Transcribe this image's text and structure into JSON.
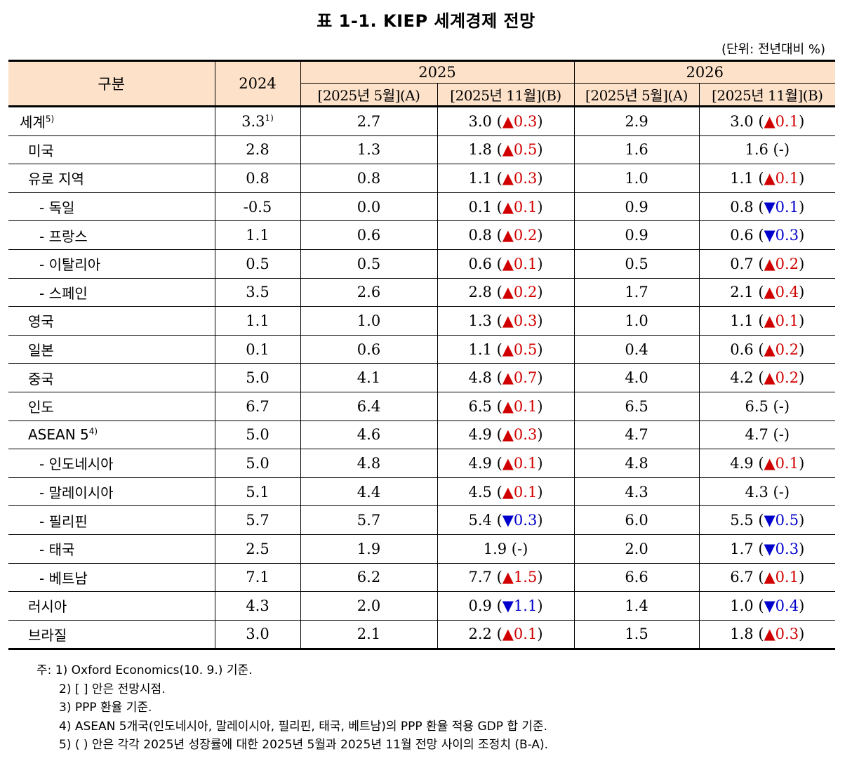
{
  "title": "표 1-1. KIEP 세계경제 전망",
  "unit": "(단위: 전년대비 %)",
  "header": {
    "category": "구분",
    "y2024": "2024",
    "y2025": "2025",
    "y2026": "2026",
    "sub_a_2025": "[2025년 5월](A)",
    "sub_b_2025": "[2025년 11월](B)",
    "sub_a_2026": "[2025년 5월](A)",
    "sub_b_2026": "[2025년 11월](B)"
  },
  "colors": {
    "up": "#d10000",
    "down": "#0000cc",
    "header_bg": "#fde1c9"
  },
  "rows": [
    {
      "label": "세계",
      "sup": "5)",
      "level": 0,
      "v2024": "3.3",
      "v2024_sup": "1)",
      "a2025": "2.7",
      "b2025": "3.0",
      "c2025": "▲0.3",
      "d2025": "up",
      "a2026": "2.9",
      "b2026": "3.0",
      "c2026": "▲0.1",
      "d2026": "up"
    },
    {
      "label": "미국",
      "sup": "",
      "level": 1,
      "v2024": "2.8",
      "v2024_sup": "",
      "a2025": "1.3",
      "b2025": "1.8",
      "c2025": "▲0.5",
      "d2025": "up",
      "a2026": "1.6",
      "b2026": "1.6",
      "c2026": "-",
      "d2026": "none"
    },
    {
      "label": "유로 지역",
      "sup": "",
      "level": 1,
      "v2024": "0.8",
      "v2024_sup": "",
      "a2025": "0.8",
      "b2025": "1.1",
      "c2025": "▲0.3",
      "d2025": "up",
      "a2026": "1.0",
      "b2026": "1.1",
      "c2026": "▲0.1",
      "d2026": "up"
    },
    {
      "label": "- 독일",
      "sup": "",
      "level": 2,
      "v2024": "-0.5",
      "v2024_sup": "",
      "a2025": "0.0",
      "b2025": "0.1",
      "c2025": "▲0.1",
      "d2025": "up",
      "a2026": "0.9",
      "b2026": "0.8",
      "c2026": "▼0.1",
      "d2026": "down"
    },
    {
      "label": "- 프랑스",
      "sup": "",
      "level": 2,
      "v2024": "1.1",
      "v2024_sup": "",
      "a2025": "0.6",
      "b2025": "0.8",
      "c2025": "▲0.2",
      "d2025": "up",
      "a2026": "0.9",
      "b2026": "0.6",
      "c2026": "▼0.3",
      "d2026": "down"
    },
    {
      "label": "- 이탈리아",
      "sup": "",
      "level": 2,
      "v2024": "0.5",
      "v2024_sup": "",
      "a2025": "0.5",
      "b2025": "0.6",
      "c2025": "▲0.1",
      "d2025": "up",
      "a2026": "0.5",
      "b2026": "0.7",
      "c2026": "▲0.2",
      "d2026": "up"
    },
    {
      "label": "- 스페인",
      "sup": "",
      "level": 2,
      "v2024": "3.5",
      "v2024_sup": "",
      "a2025": "2.6",
      "b2025": "2.8",
      "c2025": "▲0.2",
      "d2025": "up",
      "a2026": "1.7",
      "b2026": "2.1",
      "c2026": "▲0.4",
      "d2026": "up"
    },
    {
      "label": "영국",
      "sup": "",
      "level": 1,
      "v2024": "1.1",
      "v2024_sup": "",
      "a2025": "1.0",
      "b2025": "1.3",
      "c2025": "▲0.3",
      "d2025": "up",
      "a2026": "1.0",
      "b2026": "1.1",
      "c2026": "▲0.1",
      "d2026": "up"
    },
    {
      "label": "일본",
      "sup": "",
      "level": 1,
      "v2024": "0.1",
      "v2024_sup": "",
      "a2025": "0.6",
      "b2025": "1.1",
      "c2025": "▲0.5",
      "d2025": "up",
      "a2026": "0.4",
      "b2026": "0.6",
      "c2026": "▲0.2",
      "d2026": "up"
    },
    {
      "label": "중국",
      "sup": "",
      "level": 1,
      "v2024": "5.0",
      "v2024_sup": "",
      "a2025": "4.1",
      "b2025": "4.8",
      "c2025": "▲0.7",
      "d2025": "up",
      "a2026": "4.0",
      "b2026": "4.2",
      "c2026": "▲0.2",
      "d2026": "up"
    },
    {
      "label": "인도",
      "sup": "",
      "level": 1,
      "v2024": "6.7",
      "v2024_sup": "",
      "a2025": "6.4",
      "b2025": "6.5",
      "c2025": "▲0.1",
      "d2025": "up",
      "a2026": "6.5",
      "b2026": "6.5",
      "c2026": "-",
      "d2026": "none"
    },
    {
      "label": "ASEAN 5",
      "sup": "4)",
      "level": 1,
      "v2024": "5.0",
      "v2024_sup": "",
      "a2025": "4.6",
      "b2025": "4.9",
      "c2025": "▲0.3",
      "d2025": "up",
      "a2026": "4.7",
      "b2026": "4.7",
      "c2026": "-",
      "d2026": "none"
    },
    {
      "label": "- 인도네시아",
      "sup": "",
      "level": 2,
      "v2024": "5.0",
      "v2024_sup": "",
      "a2025": "4.8",
      "b2025": "4.9",
      "c2025": "▲0.1",
      "d2025": "up",
      "a2026": "4.8",
      "b2026": "4.9",
      "c2026": "▲0.1",
      "d2026": "up"
    },
    {
      "label": "- 말레이시아",
      "sup": "",
      "level": 2,
      "v2024": "5.1",
      "v2024_sup": "",
      "a2025": "4.4",
      "b2025": "4.5",
      "c2025": "▲0.1",
      "d2025": "up",
      "a2026": "4.3",
      "b2026": "4.3",
      "c2026": "-",
      "d2026": "none"
    },
    {
      "label": "- 필리핀",
      "sup": "",
      "level": 2,
      "v2024": "5.7",
      "v2024_sup": "",
      "a2025": "5.7",
      "b2025": "5.4",
      "c2025": "▼0.3",
      "d2025": "down",
      "a2026": "6.0",
      "b2026": "5.5",
      "c2026": "▼0.5",
      "d2026": "down"
    },
    {
      "label": "- 태국",
      "sup": "",
      "level": 2,
      "v2024": "2.5",
      "v2024_sup": "",
      "a2025": "1.9",
      "b2025": "1.9",
      "c2025": "-",
      "d2025": "none",
      "a2026": "2.0",
      "b2026": "1.7",
      "c2026": "▼0.3",
      "d2026": "down"
    },
    {
      "label": "- 베트남",
      "sup": "",
      "level": 2,
      "v2024": "7.1",
      "v2024_sup": "",
      "a2025": "6.2",
      "b2025": "7.7",
      "c2025": "▲1.5",
      "d2025": "up",
      "a2026": "6.6",
      "b2026": "6.7",
      "c2026": "▲0.1",
      "d2026": "up"
    },
    {
      "label": "러시아",
      "sup": "",
      "level": 1,
      "v2024": "4.3",
      "v2024_sup": "",
      "a2025": "2.0",
      "b2025": "0.9",
      "c2025": "▼1.1",
      "d2025": "down",
      "a2026": "1.4",
      "b2026": "1.0",
      "c2026": "▼0.4",
      "d2026": "down"
    },
    {
      "label": "브라질",
      "sup": "",
      "level": 1,
      "v2024": "3.0",
      "v2024_sup": "",
      "a2025": "2.1",
      "b2025": "2.2",
      "c2025": "▲0.1",
      "d2025": "up",
      "a2026": "1.5",
      "b2026": "1.8",
      "c2026": "▲0.3",
      "d2026": "up"
    }
  ],
  "notes": [
    "주: 1) Oxford Economics(10. 9.) 기준.",
    "2) [ ] 안은 전망시점.",
    "3) PPP 환율 기준.",
    "4) ASEAN 5개국(인도네시아, 말레이시아, 필리핀, 태국, 베트남)의 PPP 환율 적용 GDP 합 기준.",
    "5) ( ) 안은 각각 2025년 성장률에 대한 2025년 5월과 2025년 11월 전망 사이의 조정치 (B-A)."
  ]
}
